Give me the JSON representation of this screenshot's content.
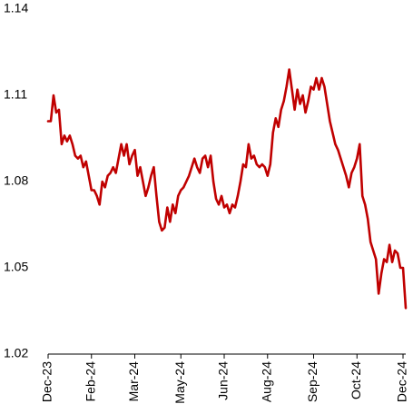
{
  "chart_data": {
    "type": "line",
    "color": "#c00000",
    "values": [
      1.101,
      1.101,
      1.11,
      1.104,
      1.105,
      1.093,
      1.096,
      1.094,
      1.096,
      1.093,
      1.089,
      1.088,
      1.089,
      1.085,
      1.087,
      1.082,
      1.077,
      1.077,
      1.075,
      1.072,
      1.08,
      1.078,
      1.082,
      1.083,
      1.085,
      1.083,
      1.088,
      1.093,
      1.089,
      1.093,
      1.086,
      1.089,
      1.091,
      1.082,
      1.085,
      1.08,
      1.075,
      1.078,
      1.082,
      1.085,
      1.075,
      1.066,
      1.063,
      1.064,
      1.071,
      1.066,
      1.072,
      1.069,
      1.075,
      1.077,
      1.078,
      1.08,
      1.082,
      1.085,
      1.088,
      1.085,
      1.083,
      1.088,
      1.089,
      1.085,
      1.089,
      1.08,
      1.074,
      1.072,
      1.075,
      1.071,
      1.072,
      1.069,
      1.072,
      1.071,
      1.075,
      1.08,
      1.086,
      1.085,
      1.093,
      1.088,
      1.089,
      1.086,
      1.085,
      1.086,
      1.085,
      1.082,
      1.086,
      1.097,
      1.102,
      1.099,
      1.105,
      1.108,
      1.113,
      1.119,
      1.112,
      1.105,
      1.112,
      1.107,
      1.11,
      1.104,
      1.108,
      1.113,
      1.112,
      1.116,
      1.112,
      1.116,
      1.113,
      1.107,
      1.101,
      1.097,
      1.093,
      1.091,
      1.088,
      1.085,
      1.082,
      1.078,
      1.083,
      1.085,
      1.088,
      1.093,
      1.075,
      1.072,
      1.067,
      1.059,
      1.056,
      1.053,
      1.041,
      1.048,
      1.053,
      1.052,
      1.058,
      1.052,
      1.056,
      1.055,
      1.05,
      1.05,
      1.036
    ],
    "xlim": [
      0,
      132
    ],
    "xticks": [
      {
        "value": 0,
        "label": "Dec-23"
      },
      {
        "value": 16,
        "label": "Feb-24"
      },
      {
        "value": 32,
        "label": "Mar-24"
      },
      {
        "value": 49,
        "label": "May-24"
      },
      {
        "value": 65,
        "label": "Jun-24"
      },
      {
        "value": 81,
        "label": "Aug-24"
      },
      {
        "value": 98,
        "label": "Sep-24"
      },
      {
        "value": 114,
        "label": "Oct-24"
      },
      {
        "value": 131,
        "label": "Dec-24"
      }
    ],
    "ylim": [
      1.02,
      1.14
    ],
    "yticks": [
      1.02,
      1.05,
      1.08,
      1.11,
      1.14
    ],
    "grid": false
  }
}
